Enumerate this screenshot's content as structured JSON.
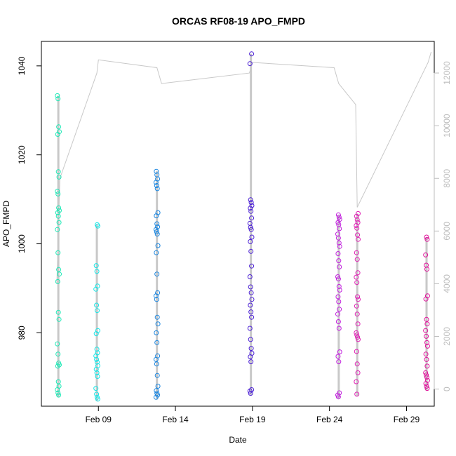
{
  "chart_data": {
    "type": "scatter",
    "title": "ORCAS RF08-19 APO_FMPD",
    "xlabel": "Date",
    "ylabel": "APO_FMPD",
    "x_ticks": [
      "Feb 09",
      "Feb 14",
      "Feb 19",
      "Feb 24",
      "Feb 29"
    ],
    "x_tick_days": [
      9,
      14,
      19,
      24,
      29
    ],
    "xlim_days": [
      5.3,
      30.8
    ],
    "y_ticks": [
      980,
      1000,
      1020,
      1040
    ],
    "ylim": [
      963.5,
      1045.5
    ],
    "y2_ticks": [
      0,
      2000,
      4000,
      6000,
      8000,
      10000,
      12000
    ],
    "y2lim": [
      -650,
      13200
    ],
    "colors": {
      "line": "#c8c8c8",
      "right_axis": "#bdbdbd"
    },
    "altitude_track": [
      [
        6.3,
        4000
      ],
      [
        6.5,
        8000
      ],
      [
        8.9,
        12000
      ],
      [
        9.0,
        12500
      ],
      [
        12.8,
        12200
      ],
      [
        13.0,
        11800
      ],
      [
        13.1,
        11600
      ],
      [
        18.8,
        12000
      ],
      [
        19.0,
        12400
      ],
      [
        24.3,
        12200
      ],
      [
        24.5,
        11800
      ],
      [
        24.6,
        11600
      ],
      [
        25.7,
        10800
      ],
      [
        25.8,
        6900
      ],
      [
        30.4,
        12400
      ],
      [
        30.6,
        12800
      ]
    ],
    "flights": [
      {
        "day": 6.4,
        "color": "#1de9b6",
        "values": [
          1033.3,
          1032.6,
          1026.3,
          1025.2,
          1024.6,
          1016.2,
          1015.0,
          1011.8,
          1011.2,
          1008.1,
          1007.5,
          1007.0,
          1006.2,
          1004.8,
          1003.2,
          998.0,
          994.2,
          993.2,
          991.5,
          984.6,
          983.0,
          977.5,
          975.2,
          973.2,
          972.8,
          972.5,
          969.0,
          968.0,
          967.2,
          966.5,
          966.0
        ]
      },
      {
        "day": 8.9,
        "color": "#17e6e6",
        "values": [
          1004.3,
          1004.0,
          995.1,
          993.8,
          990.5,
          989.8,
          986.2,
          985.0,
          980.5,
          979.8,
          976.3,
          975.5,
          974.8,
          974.0,
          973.4,
          972.6,
          971.8,
          971.0,
          970.2,
          967.5,
          966.2,
          965.5,
          965.1
        ]
      },
      {
        "day": 12.8,
        "color": "#1a86e0",
        "values": [
          1016.3,
          1015.5,
          1014.6,
          1013.8,
          1013.1,
          1012.4,
          1007.0,
          1006.3,
          1004.5,
          1003.8,
          1003.2,
          1002.7,
          1002.2,
          999.6,
          998.0,
          993.2,
          989.0,
          988.3,
          987.5,
          983.5,
          982.0,
          980.0,
          977.8,
          974.8,
          974.0,
          973.0,
          970.4,
          968.0,
          967.0,
          966.4,
          966.0,
          965.5
        ]
      },
      {
        "day": 18.9,
        "color": "#4b1fd6",
        "values": [
          1042.7,
          1040.5,
          1009.9,
          1009.3,
          1008.6,
          1008.0,
          1007.3,
          1005.8,
          1004.6,
          1003.7,
          1003.2,
          1001.5,
          1000.5,
          998.3,
          995.0,
          992.6,
          990.3,
          989.0,
          987.5,
          986.2,
          984.7,
          983.5,
          981.0,
          978.5,
          976.5,
          975.4,
          974.6,
          973.5,
          967.2,
          966.9,
          966.4
        ]
      },
      {
        "day": 24.6,
        "color": "#c21fde",
        "values": [
          1006.5,
          1006.0,
          1005.5,
          1004.8,
          1004.3,
          1003.4,
          1002.2,
          1001.3,
          1000.2,
          999.4,
          997.8,
          996.2,
          994.8,
          992.6,
          992.1,
          990.4,
          989.6,
          988.1,
          987.0,
          985.3,
          984.2,
          982.5,
          981.0,
          975.7,
          974.7,
          973.5,
          966.5,
          966.0,
          965.6
        ]
      },
      {
        "day": 25.8,
        "color": "#e01fb4",
        "values": [
          1006.8,
          1006.2,
          1005.4,
          1004.8,
          1004.1,
          1003.5,
          1002.0,
          1001.0,
          998.0,
          996.5,
          993.5,
          992.5,
          991.3,
          988.1,
          987.5,
          986.0,
          984.2,
          982.0,
          980.0,
          979.5,
          979.0,
          978.5,
          975.8,
          973.0,
          971.0,
          969.0,
          966.2
        ]
      },
      {
        "day": 30.3,
        "color": "#e0109a",
        "values": [
          1001.5,
          1001.0,
          997.5,
          995.2,
          994.3,
          988.3,
          987.6,
          983.0,
          982.0,
          980.5,
          979.2,
          977.8,
          977.0,
          975.2,
          974.0,
          972.5,
          971.0,
          970.5,
          970.0,
          969.3,
          968.6,
          968.0,
          967.5
        ]
      }
    ]
  }
}
